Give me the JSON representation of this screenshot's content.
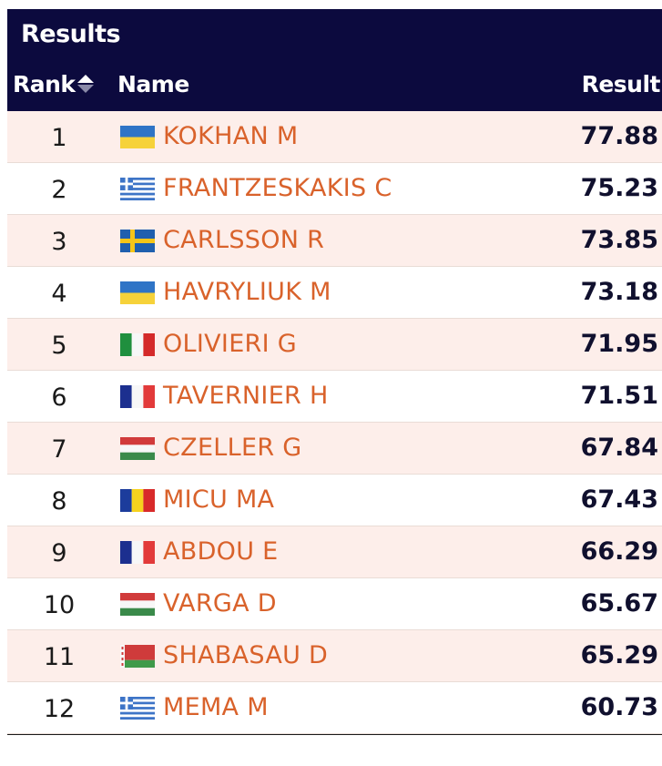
{
  "header": {
    "title": "Results",
    "col_rank": "Rank",
    "col_name": "Name",
    "col_result": "Result"
  },
  "rows": [
    {
      "rank": "1",
      "name": "KOKHAN M",
      "flag": "ukraine-flag-icon",
      "result": "77.88"
    },
    {
      "rank": "2",
      "name": "FRANTZESKAKIS C",
      "flag": "greece-flag-icon",
      "result": "75.23"
    },
    {
      "rank": "3",
      "name": "CARLSSON R",
      "flag": "sweden-flag-icon",
      "result": "73.85"
    },
    {
      "rank": "4",
      "name": "HAVRYLIUK M",
      "flag": "ukraine-flag-icon",
      "result": "73.18"
    },
    {
      "rank": "5",
      "name": "OLIVIERI G",
      "flag": "italy-flag-icon",
      "result": "71.95"
    },
    {
      "rank": "6",
      "name": "TAVERNIER H",
      "flag": "france-flag-icon",
      "result": "71.51"
    },
    {
      "rank": "7",
      "name": "CZELLER G",
      "flag": "hungary-flag-icon",
      "result": "67.84"
    },
    {
      "rank": "8",
      "name": "MICU MA",
      "flag": "romania-flag-icon",
      "result": "67.43"
    },
    {
      "rank": "9",
      "name": "ABDOU E",
      "flag": "france-flag-icon",
      "result": "66.29"
    },
    {
      "rank": "10",
      "name": "VARGA D",
      "flag": "hungary-flag-icon",
      "result": "65.67"
    },
    {
      "rank": "11",
      "name": "SHABASAU D",
      "flag": "belarus-flag-icon",
      "result": "65.29"
    },
    {
      "rank": "12",
      "name": "MEMA M",
      "flag": "greece-flag-icon",
      "result": "60.73"
    }
  ],
  "colors": {
    "header_bg": "#0c0a3e",
    "name_link": "#d9622b",
    "row_stripe": "#fdeeea"
  }
}
